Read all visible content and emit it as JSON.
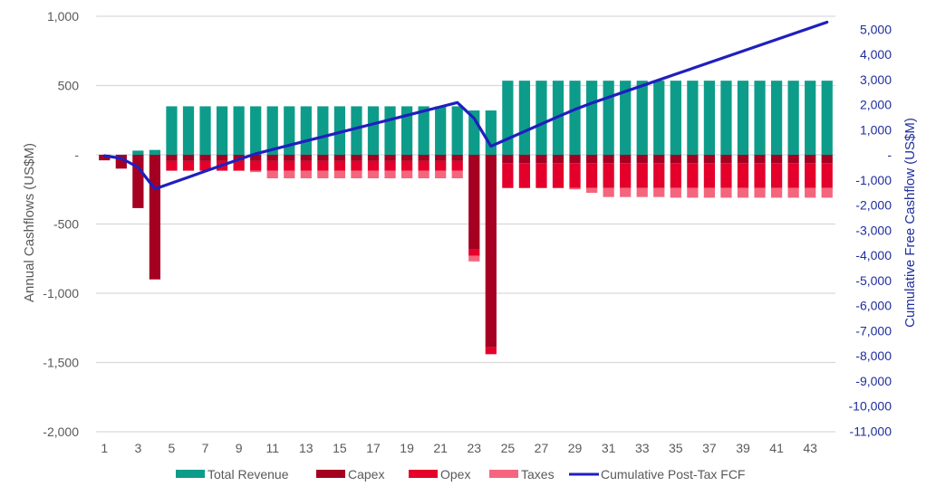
{
  "chart_data": {
    "type": "bar",
    "title": "",
    "xlabel": "",
    "ylabel": "Annual Cashflows (US$M)",
    "y2label": "Cumulative Free Cashflow (US$M)",
    "ylim": [
      -2000,
      1000
    ],
    "y2lim": [
      -11000,
      5500
    ],
    "grid": true,
    "legend_position": "bottom",
    "y_ticks": [
      {
        "value": 1000,
        "label": "1,000"
      },
      {
        "value": 500,
        "label": "500"
      },
      {
        "value": 0,
        "label": "-"
      },
      {
        "value": -500,
        "label": "-500"
      },
      {
        "value": -1000,
        "label": "-1,000"
      },
      {
        "value": -1500,
        "label": "-1,500"
      },
      {
        "value": -2000,
        "label": "-2,000"
      }
    ],
    "y2_ticks": [
      {
        "value": 5000,
        "label": "5,000"
      },
      {
        "value": 4000,
        "label": "4,000"
      },
      {
        "value": 3000,
        "label": "3,000"
      },
      {
        "value": 2000,
        "label": "2,000"
      },
      {
        "value": 1000,
        "label": "1,000"
      },
      {
        "value": 0,
        "label": "-"
      },
      {
        "value": -1000,
        "label": "-1,000"
      },
      {
        "value": -2000,
        "label": "-2,000"
      },
      {
        "value": -3000,
        "label": "-3,000"
      },
      {
        "value": -4000,
        "label": "-4,000"
      },
      {
        "value": -5000,
        "label": "-5,000"
      },
      {
        "value": -6000,
        "label": "-6,000"
      },
      {
        "value": -7000,
        "label": "-7,000"
      },
      {
        "value": -8000,
        "label": "-8,000"
      },
      {
        "value": -9000,
        "label": "-9,000"
      },
      {
        "value": -10000,
        "label": "-10,000"
      },
      {
        "value": -11000,
        "label": "-11,000"
      }
    ],
    "x_tick_labels": [
      "1",
      "3",
      "5",
      "7",
      "9",
      "11",
      "13",
      "15",
      "17",
      "19",
      "21",
      "23",
      "25",
      "27",
      "29",
      "31",
      "33",
      "35",
      "37",
      "39",
      "41",
      "43"
    ],
    "categories": [
      1,
      2,
      3,
      4,
      5,
      6,
      7,
      8,
      9,
      10,
      11,
      12,
      13,
      14,
      15,
      16,
      17,
      18,
      19,
      20,
      21,
      22,
      23,
      24,
      25,
      26,
      27,
      28,
      29,
      30,
      31,
      32,
      33,
      34,
      35,
      36,
      37,
      38,
      39,
      40,
      41,
      42,
      43,
      44
    ],
    "series": [
      {
        "name": "Total Revenue",
        "type": "bar",
        "axis": "left",
        "color": "#0e9c8a",
        "values": [
          0,
          0,
          30,
          35,
          350,
          350,
          350,
          350,
          350,
          350,
          350,
          350,
          350,
          350,
          350,
          350,
          350,
          350,
          350,
          350,
          350,
          350,
          320,
          320,
          535,
          535,
          535,
          535,
          535,
          535,
          535,
          535,
          535,
          535,
          535,
          535,
          535,
          535,
          535,
          535,
          535,
          535,
          535,
          535
        ]
      },
      {
        "name": "Capex",
        "type": "bar",
        "axis": "left",
        "color": "#a50021",
        "values": [
          -40,
          -100,
          -385,
          -900,
          -45,
          -45,
          -45,
          -45,
          -45,
          -45,
          -45,
          -45,
          -45,
          -45,
          -45,
          -45,
          -45,
          -45,
          -45,
          -45,
          -45,
          -45,
          -680,
          -1390,
          -60,
          -60,
          -60,
          -60,
          -60,
          -60,
          -60,
          -60,
          -60,
          -60,
          -60,
          -60,
          -60,
          -60,
          -60,
          -60,
          -60,
          -60,
          -60,
          -60
        ]
      },
      {
        "name": "Opex",
        "type": "bar",
        "axis": "left",
        "color": "#e4002b",
        "values": [
          0,
          0,
          0,
          0,
          -70,
          -70,
          -70,
          -70,
          -70,
          -70,
          -70,
          -70,
          -70,
          -70,
          -70,
          -70,
          -70,
          -70,
          -70,
          -70,
          -70,
          -70,
          -50,
          -50,
          -180,
          -180,
          -180,
          -180,
          -180,
          -180,
          -180,
          -180,
          -180,
          -180,
          -180,
          -180,
          -180,
          -180,
          -180,
          -180,
          -180,
          -180,
          -180,
          -180
        ]
      },
      {
        "name": "Taxes",
        "type": "bar",
        "axis": "left",
        "color": "#f4667e",
        "values": [
          0,
          0,
          0,
          0,
          0,
          0,
          0,
          0,
          0,
          -10,
          -55,
          -55,
          -55,
          -55,
          -55,
          -55,
          -55,
          -55,
          -55,
          -55,
          -55,
          -55,
          -40,
          0,
          0,
          0,
          0,
          0,
          -10,
          -35,
          -65,
          -65,
          -65,
          -65,
          -70,
          -70,
          -70,
          -70,
          -70,
          -70,
          -70,
          -70,
          -70,
          -70
        ]
      },
      {
        "name": "Cumulative Post-Tax FCF",
        "type": "line",
        "axis": "right",
        "color": "#1f1fbf",
        "values": [
          -40,
          -140,
          -495,
          -1360,
          -1125,
          -890,
          -655,
          -420,
          -185,
          40,
          210,
          380,
          550,
          720,
          890,
          1060,
          1230,
          1400,
          1570,
          1740,
          1910,
          2080,
          1450,
          340,
          635,
          930,
          1225,
          1520,
          1805,
          2060,
          2290,
          2520,
          2750,
          2980,
          3210,
          3440,
          3670,
          3900,
          4130,
          4360,
          4590,
          4820,
          5050,
          5280
        ]
      }
    ]
  }
}
